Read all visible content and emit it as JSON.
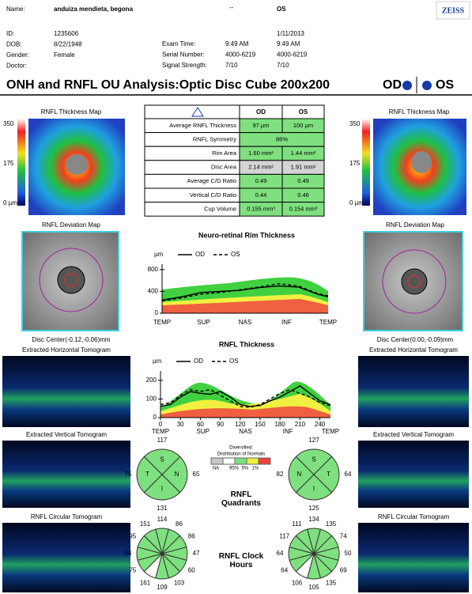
{
  "header": {
    "name_label": "Name:",
    "name": "anduiza mendieta, begona",
    "dash": "--",
    "eye": "OS",
    "logo": "ZEISS",
    "date": "1/11/2013",
    "fields": [
      {
        "label": "ID:",
        "value": "1235606"
      },
      {
        "label": "DOB:",
        "value": "8/22/1948"
      },
      {
        "label": "Gender:",
        "value": "Female"
      },
      {
        "label": "Doctor:"
      }
    ],
    "exam": [
      {
        "label": "Exam Time:",
        "od": "9:49 AM",
        "os": "9:49 AM"
      },
      {
        "label": "Serial Number:",
        "od": "4000-6219",
        "os": "4000-6219"
      },
      {
        "label": "Signal Strength:",
        "od": "7/10",
        "os": "7/10"
      }
    ]
  },
  "title": {
    "text": "ONH and RNFL OU Analysis:Optic Disc Cube 200x200",
    "od": "OD",
    "os": "OS"
  },
  "table": {
    "columns": [
      "OD",
      "OS"
    ],
    "rows": [
      {
        "label": "Average RNFL Thickness",
        "od": "97 µm",
        "os": "100 µm",
        "colors": [
          "#7fe07f",
          "#7fe07f"
        ]
      },
      {
        "label": "RNFL Symmetry",
        "both": "86%",
        "colors": [
          "#7fe07f"
        ]
      },
      {
        "label": "Rim Area",
        "od": "1.60 mm²",
        "os": "1.44 mm²",
        "colors": [
          "#7fe07f",
          "#7fe07f"
        ]
      },
      {
        "label": "Disc Area",
        "od": "2.14 mm²",
        "os": "1.91 mm²",
        "colors": [
          "#d4d4d4",
          "#d4d4d4"
        ]
      },
      {
        "label": "Average C/D Ratio",
        "od": "0.49",
        "os": "0.49",
        "colors": [
          "#7fe07f",
          "#7fe07f"
        ]
      },
      {
        "label": "Vertical C/D Ratio",
        "od": "0.44",
        "os": "0.46",
        "colors": [
          "#7fe07f",
          "#7fe07f"
        ]
      },
      {
        "label": "Cup Volume",
        "od": "0.155 mm³",
        "os": "0.154 mm³",
        "colors": [
          "#7fe07f",
          "#7fe07f"
        ]
      }
    ]
  },
  "thickness_map": {
    "title": "RNFL Thickness Map",
    "scale": [
      "350",
      "175",
      "0 µm"
    ]
  },
  "deviation_map": {
    "title": "RNFL Deviation Map",
    "od_center": "Disc Center(-0.12,-0.06)mm",
    "os_center": "Disc Center(0.00,-0.09)mm"
  },
  "tomograms": [
    "Extracted Horizontal Tomogram",
    "Extracted Vertical Tomogram",
    "RNFL Circular Tomogram"
  ],
  "rim_chart": {
    "type": "line",
    "title": "Neuro-retinal Rim Thickness",
    "unit": "µm",
    "x": [
      0,
      30,
      60,
      90,
      120,
      150,
      180,
      210,
      240,
      256
    ],
    "xlim": [
      0,
      256
    ],
    "x_labels": [
      "TEMP",
      "SUP",
      "NAS",
      "INF",
      "TEMP"
    ],
    "ylim": [
      0,
      900
    ],
    "yticks": [
      0,
      400,
      800
    ],
    "series": [
      {
        "name": "OD",
        "color": "#000000",
        "dash": false,
        "values": [
          240,
          300,
          380,
          400,
          420,
          470,
          500,
          480,
          350,
          300
        ]
      },
      {
        "name": "OS",
        "color": "#000000",
        "dash": true,
        "values": [
          230,
          280,
          350,
          380,
          430,
          480,
          540,
          500,
          360,
          320
        ]
      }
    ]
  },
  "rnfl_chart": {
    "type": "line",
    "title": "RNFL Thickness",
    "unit": "µm",
    "x": [
      0,
      15,
      30,
      45,
      60,
      75,
      90,
      105,
      120,
      135,
      150,
      165,
      180,
      195,
      210,
      225,
      240,
      256
    ],
    "xlim": [
      0,
      256
    ],
    "xticks": [
      0,
      30,
      60,
      90,
      120,
      150,
      180,
      210,
      240
    ],
    "x_labels": [
      "TEMP",
      "SUP",
      "NAS",
      "INF",
      "TEMP"
    ],
    "ylim": [
      0,
      250
    ],
    "yticks": [
      0,
      100,
      200
    ],
    "series": [
      {
        "name": "OD",
        "color": "#000000",
        "dash": false,
        "values": [
          60,
          70,
          110,
          140,
          130,
          125,
          140,
          110,
          70,
          60,
          65,
          90,
          110,
          140,
          170,
          130,
          90,
          70
        ]
      },
      {
        "name": "OS",
        "color": "#000000",
        "dash": true,
        "values": [
          70,
          80,
          120,
          150,
          140,
          150,
          120,
          90,
          60,
          55,
          70,
          100,
          130,
          150,
          130,
          110,
          80,
          65
        ]
      }
    ]
  },
  "quadrants": {
    "label": "RNFL Quadrants",
    "legend_note": "Diversified:",
    "legend_title": "Distribution of Normals",
    "legend_labels": [
      "NA",
      "95%",
      "5%",
      "1%"
    ],
    "legend_colors": [
      "#c8c8c8",
      "#ffffff",
      "#7fe07f",
      "#f0f040",
      "#f04040"
    ],
    "od": {
      "letters": [
        "S",
        "N",
        "I",
        "T"
      ],
      "values": [
        117,
        65,
        131,
        75
      ],
      "colors": [
        "#7fe07f",
        "#7fe07f",
        "#7fe07f",
        "#7fe07f"
      ]
    },
    "os": {
      "letters": [
        "S",
        "T",
        "I",
        "N"
      ],
      "values": [
        127,
        64,
        125,
        82
      ],
      "colors": [
        "#7fe07f",
        "#7fe07f",
        "#7fe07f",
        "#7fe07f"
      ]
    }
  },
  "clock": {
    "label": "RNFL Clock Hours",
    "od": {
      "values": [
        114,
        86,
        86,
        47,
        60,
        103,
        109,
        161,
        75,
        54,
        95,
        151
      ],
      "colors": [
        "#7fe07f",
        "#7fe07f",
        "#7fe07f",
        "#7fe07f",
        "#7fe07f",
        "#7fe07f",
        "#7fe07f",
        "#ffffff",
        "#7fe07f",
        "#7fe07f",
        "#7fe07f",
        "#7fe07f"
      ]
    },
    "os": {
      "values": [
        134,
        135,
        74,
        50,
        69,
        135,
        105,
        106,
        64,
        64,
        117,
        111
      ],
      "colors": [
        "#7fe07f",
        "#7fe07f",
        "#7fe07f",
        "#7fe07f",
        "#7fe07f",
        "#7fe07f",
        "#7fe07f",
        "#ffffff",
        "#7fe07f",
        "#7fe07f",
        "#7fe07f",
        "#7fe07f"
      ]
    }
  }
}
